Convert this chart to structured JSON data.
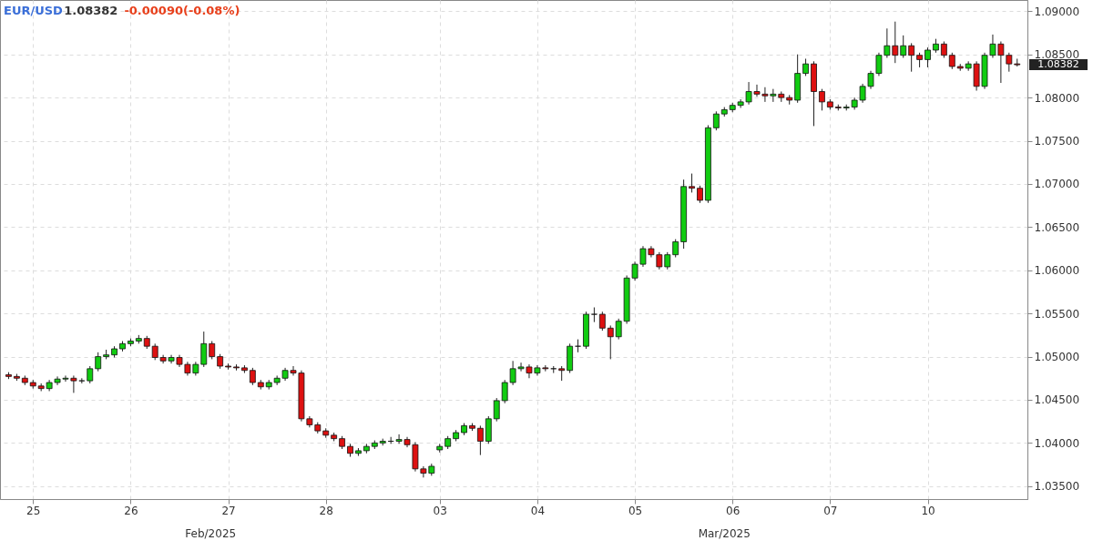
{
  "chart_data": {
    "type": "candlestick",
    "title": "EUR/USD",
    "annotations": [
      "1.08382",
      "-0.00090(-0.08%)",
      "Feb/2025",
      "Mar/2025",
      "1.08382"
    ],
    "categories": [
      null,
      null,
      null,
      "25",
      null,
      null,
      null,
      null,
      null,
      null,
      null,
      null,
      null,
      null,
      null,
      "26",
      null,
      null,
      null,
      null,
      null,
      null,
      null,
      null,
      null,
      null,
      null,
      "27",
      null,
      null,
      null,
      null,
      null,
      null,
      null,
      null,
      null,
      null,
      null,
      "28",
      null,
      null,
      null,
      null,
      null,
      null,
      null,
      null,
      null,
      null,
      null,
      null,
      null,
      "03",
      null,
      null,
      null,
      null,
      null,
      null,
      null,
      null,
      null,
      null,
      null,
      "04",
      null,
      null,
      null,
      null,
      null,
      null,
      null,
      null,
      null,
      null,
      null,
      "05",
      null,
      null,
      null,
      null,
      null,
      null,
      null,
      null,
      null,
      null,
      null,
      "06",
      null,
      null,
      null,
      null,
      null,
      null,
      null,
      null,
      null,
      null,
      null,
      "07",
      null,
      null,
      null,
      null,
      null,
      null,
      null,
      null,
      null,
      null,
      null,
      "10",
      null,
      null,
      null,
      null,
      null,
      null,
      null,
      null,
      null,
      null,
      null
    ],
    "ohlc": [
      [
        1.0479,
        1.0482,
        1.0474,
        1.0477
      ],
      [
        1.0477,
        1.048,
        1.0472,
        1.0475
      ],
      [
        1.0475,
        1.0478,
        1.0467,
        1.047
      ],
      [
        1.047,
        1.0473,
        1.0463,
        1.0466
      ],
      [
        1.0466,
        1.0469,
        1.046,
        1.0463
      ],
      [
        1.0463,
        1.0473,
        1.046,
        1.047
      ],
      [
        1.047,
        1.0477,
        1.0467,
        1.0474
      ],
      [
        1.0474,
        1.0478,
        1.0471,
        1.0475
      ],
      [
        1.0475,
        1.0478,
        1.0458,
        1.0472
      ],
      [
        1.0472,
        1.0475,
        1.0469,
        1.0472
      ],
      [
        1.0472,
        1.0489,
        1.0469,
        1.0486
      ],
      [
        1.0486,
        1.0505,
        1.0483,
        1.05
      ],
      [
        1.05,
        1.0508,
        1.0497,
        1.0502
      ],
      [
        1.0502,
        1.0512,
        1.0499,
        1.0509
      ],
      [
        1.0509,
        1.0518,
        1.0506,
        1.0515
      ],
      [
        1.0515,
        1.0521,
        1.0512,
        1.0518
      ],
      [
        1.0518,
        1.0525,
        1.0515,
        1.0521
      ],
      [
        1.0521,
        1.0524,
        1.0509,
        1.0512
      ],
      [
        1.0512,
        1.0515,
        1.0496,
        1.0499
      ],
      [
        1.0499,
        1.0502,
        1.0492,
        1.0495
      ],
      [
        1.0495,
        1.0502,
        1.0492,
        1.0499
      ],
      [
        1.0499,
        1.0502,
        1.0488,
        1.0491
      ],
      [
        1.0491,
        1.0494,
        1.0478,
        1.0481
      ],
      [
        1.0481,
        1.0494,
        1.0478,
        1.0491
      ],
      [
        1.0491,
        1.0529,
        1.0488,
        1.0515
      ],
      [
        1.0515,
        1.0518,
        1.0497,
        1.05
      ],
      [
        1.05,
        1.0503,
        1.0486,
        1.0489
      ],
      [
        1.0489,
        1.0492,
        1.0485,
        1.0488
      ],
      [
        1.0488,
        1.0491,
        1.0484,
        1.0487
      ],
      [
        1.0487,
        1.049,
        1.0481,
        1.0484
      ],
      [
        1.0484,
        1.0487,
        1.0467,
        1.047
      ],
      [
        1.047,
        1.0473,
        1.0462,
        1.0465
      ],
      [
        1.0465,
        1.0473,
        1.0462,
        1.047
      ],
      [
        1.047,
        1.0478,
        1.0467,
        1.0475
      ],
      [
        1.0475,
        1.0487,
        1.0472,
        1.0484
      ],
      [
        1.0484,
        1.0489,
        1.0478,
        1.0481
      ],
      [
        1.0481,
        1.0484,
        1.0425,
        1.0428
      ],
      [
        1.0428,
        1.0431,
        1.0418,
        1.0421
      ],
      [
        1.0421,
        1.0424,
        1.0411,
        1.0414
      ],
      [
        1.0414,
        1.0417,
        1.0406,
        1.0409
      ],
      [
        1.0409,
        1.0412,
        1.0402,
        1.0405
      ],
      [
        1.0405,
        1.0408,
        1.0393,
        1.0396
      ],
      [
        1.0396,
        1.0399,
        1.0384,
        1.0388
      ],
      [
        1.0388,
        1.0394,
        1.0385,
        1.0391
      ],
      [
        1.0391,
        1.0399,
        1.0388,
        1.0396
      ],
      [
        1.0396,
        1.0403,
        1.0393,
        1.04
      ],
      [
        1.04,
        1.0405,
        1.0397,
        1.0402
      ],
      [
        1.0402,
        1.0407,
        1.0399,
        1.0402
      ],
      [
        1.0402,
        1.041,
        1.0399,
        1.0404
      ],
      [
        1.0404,
        1.0407,
        1.0395,
        1.0398
      ],
      [
        1.0398,
        1.0401,
        1.0367,
        1.037
      ],
      [
        1.037,
        1.0373,
        1.036,
        1.0365
      ],
      [
        1.0365,
        1.0376,
        1.0362,
        1.0373
      ],
      [
        1.0392,
        1.0399,
        1.0389,
        1.0396
      ],
      [
        1.0396,
        1.0408,
        1.0393,
        1.0405
      ],
      [
        1.0405,
        1.0415,
        1.0402,
        1.0412
      ],
      [
        1.0412,
        1.0423,
        1.0409,
        1.042
      ],
      [
        1.042,
        1.0423,
        1.0414,
        1.0417
      ],
      [
        1.0417,
        1.042,
        1.0386,
        1.0402
      ],
      [
        1.0402,
        1.0431,
        1.0399,
        1.0428
      ],
      [
        1.0428,
        1.0452,
        1.0425,
        1.0449
      ],
      [
        1.0449,
        1.0473,
        1.0446,
        1.047
      ],
      [
        1.047,
        1.0495,
        1.0467,
        1.0486
      ],
      [
        1.0486,
        1.0493,
        1.0483,
        1.0488
      ],
      [
        1.0488,
        1.0491,
        1.0475,
        1.0481
      ],
      [
        1.0481,
        1.049,
        1.0478,
        1.0487
      ],
      [
        1.0487,
        1.049,
        1.0483,
        1.0486
      ],
      [
        1.0486,
        1.0489,
        1.0481,
        1.0486
      ],
      [
        1.0486,
        1.0489,
        1.0472,
        1.0484
      ],
      [
        1.0484,
        1.0515,
        1.0481,
        1.0512
      ],
      [
        1.0512,
        1.052,
        1.0505,
        1.0512
      ],
      [
        1.0512,
        1.0552,
        1.0509,
        1.0549
      ],
      [
        1.0549,
        1.0557,
        1.054,
        1.0549
      ],
      [
        1.0549,
        1.0552,
        1.053,
        1.0533
      ],
      [
        1.0533,
        1.0536,
        1.0497,
        1.0523
      ],
      [
        1.0523,
        1.0544,
        1.052,
        1.0541
      ],
      [
        1.0541,
        1.0594,
        1.0538,
        1.0591
      ],
      [
        1.0591,
        1.061,
        1.0588,
        1.0607
      ],
      [
        1.0607,
        1.0628,
        1.0604,
        1.0625
      ],
      [
        1.0625,
        1.0628,
        1.0615,
        1.0618
      ],
      [
        1.0618,
        1.0621,
        1.0601,
        1.0604
      ],
      [
        1.0604,
        1.0621,
        1.0601,
        1.0618
      ],
      [
        1.0618,
        1.0636,
        1.0615,
        1.0633
      ],
      [
        1.0633,
        1.0705,
        1.0625,
        1.0697
      ],
      [
        1.0697,
        1.0712,
        1.069,
        1.0695
      ],
      [
        1.0695,
        1.0698,
        1.0678,
        1.0681
      ],
      [
        1.0681,
        1.0768,
        1.0678,
        1.0765
      ],
      [
        1.0765,
        1.0784,
        1.0762,
        1.0781
      ],
      [
        1.0781,
        1.0789,
        1.0778,
        1.0786
      ],
      [
        1.0786,
        1.0794,
        1.0783,
        1.0791
      ],
      [
        1.0791,
        1.0798,
        1.0788,
        1.0795
      ],
      [
        1.0795,
        1.0818,
        1.0792,
        1.0807
      ],
      [
        1.0807,
        1.0815,
        1.0801,
        1.0804
      ],
      [
        1.0804,
        1.0812,
        1.0795,
        1.0802
      ],
      [
        1.0802,
        1.081,
        1.0795,
        1.0804
      ],
      [
        1.0804,
        1.0807,
        1.0795,
        1.08
      ],
      [
        1.08,
        1.0803,
        1.0792,
        1.0797
      ],
      [
        1.0797,
        1.085,
        1.0794,
        1.0828
      ],
      [
        1.0828,
        1.0845,
        1.0825,
        1.0839
      ],
      [
        1.0839,
        1.0842,
        1.0767,
        1.0807
      ],
      [
        1.0807,
        1.081,
        1.0785,
        1.0795
      ],
      [
        1.0795,
        1.0798,
        1.0786,
        1.0789
      ],
      [
        1.0789,
        1.0792,
        1.0785,
        1.0788
      ],
      [
        1.0788,
        1.0792,
        1.0785,
        1.0789
      ],
      [
        1.0789,
        1.08,
        1.0786,
        1.0797
      ],
      [
        1.0797,
        1.0816,
        1.0794,
        1.0813
      ],
      [
        1.0813,
        1.0831,
        1.081,
        1.0828
      ],
      [
        1.0828,
        1.0852,
        1.0825,
        1.0849
      ],
      [
        1.0849,
        1.088,
        1.0846,
        1.086
      ],
      [
        1.086,
        1.0888,
        1.084,
        1.0849
      ],
      [
        1.0849,
        1.0872,
        1.0846,
        1.086
      ],
      [
        1.086,
        1.0863,
        1.083,
        1.0849
      ],
      [
        1.0849,
        1.0852,
        1.0835,
        1.0844
      ],
      [
        1.0844,
        1.0858,
        1.0835,
        1.0855
      ],
      [
        1.0855,
        1.0868,
        1.0852,
        1.0862
      ],
      [
        1.0862,
        1.0865,
        1.0846,
        1.0849
      ],
      [
        1.0849,
        1.0852,
        1.0833,
        1.0836
      ],
      [
        1.0836,
        1.0839,
        1.0831,
        1.0834
      ],
      [
        1.0834,
        1.0842,
        1.0831,
        1.0839
      ],
      [
        1.0839,
        1.0842,
        1.0808,
        1.0813
      ],
      [
        1.0813,
        1.0852,
        1.081,
        1.0849
      ],
      [
        1.0849,
        1.0873,
        1.0846,
        1.0862
      ],
      [
        1.0862,
        1.0865,
        1.0817,
        1.0849
      ],
      [
        1.0849,
        1.0852,
        1.083,
        1.0839
      ],
      [
        1.0839,
        1.0845,
        1.0836,
        1.0838
      ]
    ],
    "ylim": [
      1.0335,
      1.0913
    ],
    "yticks": [
      {
        "value": 1.035,
        "label": "1.03500"
      },
      {
        "value": 1.04,
        "label": "1.04000"
      },
      {
        "value": 1.045,
        "label": "1.04500"
      },
      {
        "value": 1.05,
        "label": "1.05000"
      },
      {
        "value": 1.055,
        "label": "1.05500"
      },
      {
        "value": 1.06,
        "label": "1.06000"
      },
      {
        "value": 1.065,
        "label": "1.06500"
      },
      {
        "value": 1.07,
        "label": "1.07000"
      },
      {
        "value": 1.075,
        "label": "1.07500"
      },
      {
        "value": 1.08,
        "label": "1.08000"
      },
      {
        "value": 1.085,
        "label": "1.08500"
      },
      {
        "value": 1.09,
        "label": "1.09000"
      }
    ],
    "grid": true
  }
}
